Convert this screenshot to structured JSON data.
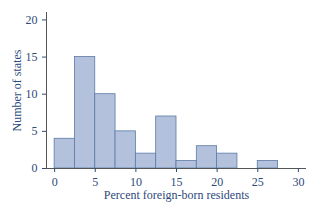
{
  "chart_data": {
    "type": "histogram",
    "xlabel": "Percent foreign-born residents",
    "ylabel": "Number of states",
    "bins": [
      0,
      2.5,
      5,
      7.5,
      10,
      12.5,
      15,
      17.5,
      20,
      22.5,
      25,
      27.5
    ],
    "counts": [
      4,
      15,
      10,
      5,
      2,
      7,
      1,
      3,
      2,
      0,
      1
    ],
    "color": "#b3c1dc",
    "xlim": [
      -1,
      31
    ],
    "xticks": [
      0,
      5,
      10,
      15,
      20,
      25,
      30
    ],
    "ylim": [
      0,
      21
    ],
    "yticks": [
      0,
      5,
      10,
      15,
      20
    ],
    "grid": false
  }
}
